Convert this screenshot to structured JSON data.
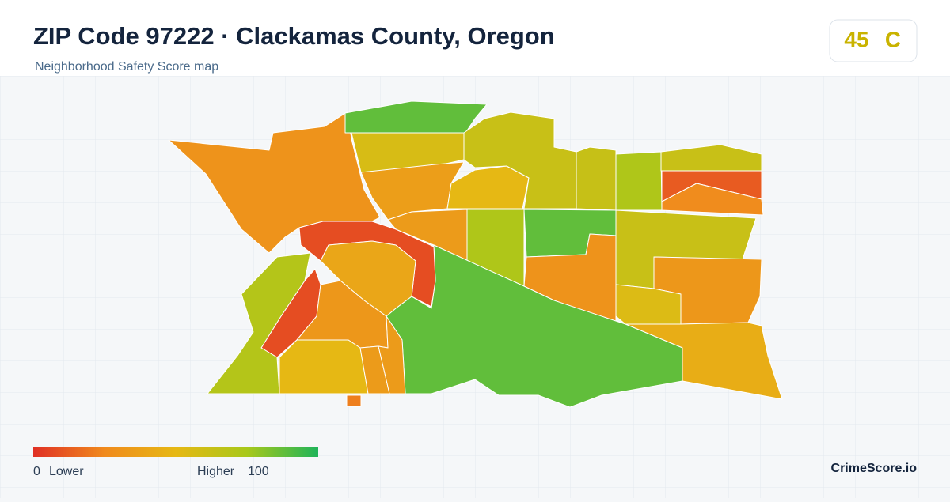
{
  "header": {
    "title": "ZIP Code 97222 · Clackamas County, Oregon",
    "subtitle": "Neighborhood Safety Score map"
  },
  "badge": {
    "score": 45,
    "grade": "C"
  },
  "legend": {
    "min": 0,
    "max": 100,
    "low_label": "Lower",
    "high_label": "Higher",
    "colors": [
      "#e03025",
      "#f08a1d",
      "#e6b814",
      "#a8c81a",
      "#1fb45a"
    ]
  },
  "regions": [
    {
      "score": 30
    },
    {
      "score": 88
    },
    {
      "score": 56
    },
    {
      "score": 36
    },
    {
      "score": 50
    },
    {
      "score": 62
    },
    {
      "score": 63
    },
    {
      "score": 72
    },
    {
      "score": 62
    },
    {
      "score": 12
    },
    {
      "score": 26
    },
    {
      "score": 34
    },
    {
      "score": 72
    },
    {
      "score": 88
    },
    {
      "score": 30
    },
    {
      "score": 62
    },
    {
      "score": 32
    },
    {
      "score": 54
    },
    {
      "score": 44
    },
    {
      "score": 88
    },
    {
      "score": 8
    },
    {
      "score": 40
    },
    {
      "score": 8
    },
    {
      "score": 70
    },
    {
      "score": 32
    },
    {
      "score": 50
    },
    {
      "score": 34
    },
    {
      "score": 34
    },
    {
      "score": 22
    }
  ],
  "brand": "CrimeScore.io"
}
